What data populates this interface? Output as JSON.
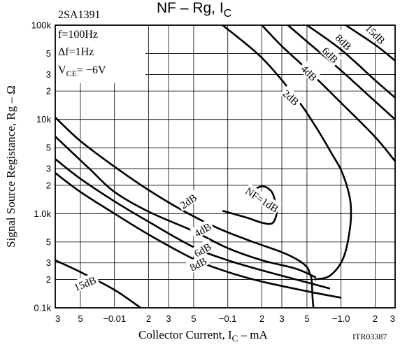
{
  "chart_data": {
    "type": "line",
    "title_main": "NF  –  Rg, I",
    "title_sub": "C",
    "device": "2SA1391",
    "conditions": [
      "f=100Hz",
      "Δf=1Hz"
    ],
    "vce_prefix": "V",
    "vce_sub": "CE",
    "vce_suffix": "= −6V",
    "xlabel_main": "Collector Current, I",
    "xlabel_sub": "C",
    "xlabel_unit": "  –  mA",
    "ylabel": "Signal Source Registance, Rg  –  Ω",
    "code": "ITR03387",
    "x_scale": "log",
    "y_scale": "log",
    "xlim": [
      0.003,
      3
    ],
    "ylim": [
      100,
      100000
    ],
    "grid": true,
    "x_ticks": [
      {
        "v": 0.003,
        "t": "3"
      },
      {
        "v": 0.005,
        "t": "5"
      },
      {
        "v": 0.01,
        "t": "−0.01"
      },
      {
        "v": 0.02,
        "t": "2"
      },
      {
        "v": 0.03,
        "t": "3"
      },
      {
        "v": 0.05,
        "t": "5"
      },
      {
        "v": 0.1,
        "t": "−0.1"
      },
      {
        "v": 0.2,
        "t": "2"
      },
      {
        "v": 0.3,
        "t": "3"
      },
      {
        "v": 0.5,
        "t": "5"
      },
      {
        "v": 1,
        "t": "−1.0"
      },
      {
        "v": 2,
        "t": "2"
      },
      {
        "v": 3,
        "t": "3"
      }
    ],
    "y_ticks": [
      {
        "v": 100,
        "t": "0.1k"
      },
      {
        "v": 200,
        "t": "2"
      },
      {
        "v": 300,
        "t": "3"
      },
      {
        "v": 500,
        "t": "5"
      },
      {
        "v": 1000,
        "t": "1.0k"
      },
      {
        "v": 2000,
        "t": "2"
      },
      {
        "v": 3000,
        "t": "3"
      },
      {
        "v": 5000,
        "t": "5"
      },
      {
        "v": 10000,
        "t": "10k"
      },
      {
        "v": 20000,
        "t": "2"
      },
      {
        "v": 30000,
        "t": "3"
      },
      {
        "v": 50000,
        "t": "5"
      },
      {
        "v": 100000,
        "t": "100k"
      }
    ],
    "series": [
      {
        "name": "NF=1dB",
        "label_at": [
          0.2,
          1400
        ],
        "label_rot": 33,
        "points": [
          [
            0.16,
            1700
          ],
          [
            0.2,
            1950
          ],
          [
            0.24,
            1750
          ],
          [
            0.26,
            1400
          ],
          [
            0.27,
            1050
          ],
          [
            0.26,
            860
          ],
          [
            0.24,
            780
          ],
          [
            0.2,
            800
          ],
          [
            0.15,
            900
          ],
          [
            0.11,
            1000
          ],
          [
            0.09,
            1070
          ]
        ]
      },
      {
        "name": "2dB",
        "label_at": [
          0.045,
          1350
        ],
        "label_rot": -35,
        "points": [
          [
            0.003,
            10500
          ],
          [
            0.005,
            5900
          ],
          [
            0.01,
            3150
          ],
          [
            0.02,
            1780
          ],
          [
            0.04,
            1080
          ],
          [
            0.08,
            710
          ],
          [
            0.16,
            510
          ],
          [
            0.3,
            390
          ],
          [
            0.42,
            320
          ],
          [
            0.5,
            270
          ],
          [
            0.53,
            230
          ],
          [
            0.55,
            200
          ],
          [
            0.56,
            130
          ],
          [
            0.57,
            100
          ]
        ]
      },
      {
        "name": "2dB",
        "label_at": [
          0.36,
          17000
        ],
        "label_rot": 42,
        "points": [
          [
            0.09,
            100000
          ],
          [
            0.2,
            45000
          ],
          [
            0.4,
            17000
          ],
          [
            0.6,
            8300
          ],
          [
            0.85,
            4100
          ],
          [
            1.0,
            2900
          ],
          [
            1.15,
            1800
          ],
          [
            1.22,
            1200
          ],
          [
            1.2,
            700
          ],
          [
            1.05,
            340
          ],
          [
            0.8,
            220
          ],
          [
            0.58,
            200
          ]
        ]
      },
      {
        "name": "4dB",
        "label_at": [
          0.06,
          670
        ],
        "label_rot": -30,
        "points": [
          [
            0.003,
            6600
          ],
          [
            0.006,
            3000
          ],
          [
            0.01,
            1700
          ],
          [
            0.02,
            1050
          ],
          [
            0.05,
            650
          ],
          [
            0.1,
            430
          ],
          [
            0.2,
            320
          ],
          [
            0.4,
            260
          ],
          [
            0.6,
            210
          ]
        ]
      },
      {
        "name": "4dB",
        "label_at": [
          0.52,
          31000
        ],
        "label_rot": 45,
        "points": [
          [
            0.2,
            100000
          ],
          [
            0.3,
            60000
          ],
          [
            0.5,
            34000
          ],
          [
            1.0,
            15000
          ],
          [
            2.0,
            6500
          ],
          [
            3.0,
            3600
          ]
        ]
      },
      {
        "name": "6dB",
        "label_at": [
          0.06,
          410
        ],
        "label_rot": -30,
        "points": [
          [
            0.003,
            3800
          ],
          [
            0.005,
            2350
          ],
          [
            0.01,
            1350
          ],
          [
            0.02,
            820
          ],
          [
            0.05,
            440
          ],
          [
            0.1,
            320
          ],
          [
            0.2,
            250
          ],
          [
            0.4,
            200
          ],
          [
            0.8,
            160
          ]
        ]
      },
      {
        "name": "6dB",
        "label_at": [
          0.8,
          48000
        ],
        "label_rot": 45,
        "points": [
          [
            0.34,
            100000
          ],
          [
            0.5,
            67000
          ],
          [
            1.0,
            33000
          ],
          [
            2.0,
            15500
          ],
          [
            3.0,
            10000
          ]
        ]
      },
      {
        "name": "8dB",
        "label_at": [
          0.055,
          290
        ],
        "label_rot": -28,
        "points": [
          [
            0.003,
            2700
          ],
          [
            0.005,
            1700
          ],
          [
            0.01,
            1000
          ],
          [
            0.02,
            600
          ],
          [
            0.05,
            330
          ],
          [
            0.1,
            240
          ],
          [
            0.2,
            190
          ],
          [
            0.5,
            150
          ],
          [
            1.0,
            128
          ]
        ]
      },
      {
        "name": "8dB",
        "label_at": [
          1.05,
          66000
        ],
        "label_rot": 45,
        "points": [
          [
            0.5,
            100000
          ],
          [
            1.0,
            55000
          ],
          [
            2.0,
            26000
          ],
          [
            3.0,
            17000
          ]
        ]
      },
      {
        "name": "15dB",
        "label_at": [
          0.0055,
          180
        ],
        "label_rot": -22,
        "points": [
          [
            0.003,
            320
          ],
          [
            0.005,
            240
          ],
          [
            0.01,
            155
          ],
          [
            0.017,
            100
          ]
        ]
      },
      {
        "name": "15dB",
        "label_at": [
          2.0,
          80000
        ],
        "label_rot": 45,
        "points": [
          [
            1.1,
            100000
          ],
          [
            2.0,
            62000
          ],
          [
            3.0,
            42000
          ]
        ]
      }
    ]
  }
}
